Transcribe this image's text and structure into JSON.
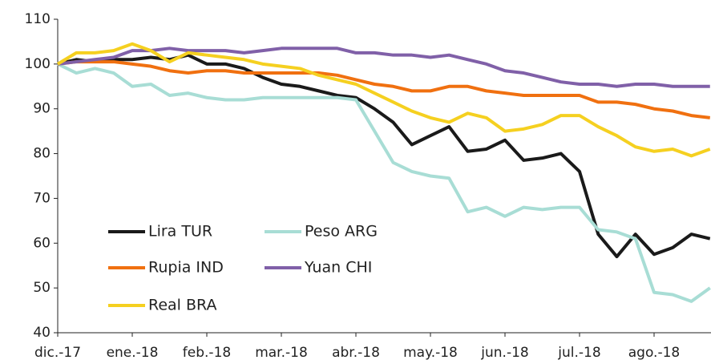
{
  "chart_data": {
    "type": "line",
    "categories": [
      "dic.-17",
      null,
      null,
      null,
      "ene.-18",
      null,
      null,
      null,
      "feb.-18",
      null,
      null,
      null,
      "mar.-18",
      null,
      null,
      null,
      "abr.-18",
      null,
      null,
      null,
      "may.-18",
      null,
      null,
      null,
      "jun.-18",
      null,
      null,
      null,
      "jul.-18",
      null,
      null,
      null,
      "ago.-18",
      null,
      null,
      null
    ],
    "series": [
      {
        "name": "Lira TUR",
        "color": "#1a1a1a",
        "values": [
          100,
          101,
          100.5,
          101,
          101,
          101.5,
          101,
          102,
          100,
          100,
          99,
          97,
          95.5,
          95,
          94,
          93,
          92.5,
          90,
          87,
          82,
          84,
          86,
          80.5,
          81,
          83,
          78.5,
          79,
          80,
          76,
          62,
          57,
          62,
          57.5,
          59,
          62,
          61
        ]
      },
      {
        "name": "Peso ARG",
        "color": "#a8ddd5",
        "values": [
          100,
          98,
          99,
          98,
          95,
          95.5,
          93,
          93.5,
          92.5,
          92,
          92,
          92.5,
          92.5,
          92.5,
          92.5,
          92.5,
          92,
          85,
          78,
          76,
          75,
          74.5,
          67,
          68,
          66,
          68,
          67.5,
          68,
          68,
          63,
          62.5,
          61,
          49,
          48.5,
          47,
          50
        ]
      },
      {
        "name": "Rupia IND",
        "color": "#f07010",
        "values": [
          100,
          100.5,
          100.5,
          100.5,
          100,
          99.5,
          98.5,
          98,
          98.5,
          98.5,
          98,
          98,
          98,
          98,
          98,
          97.5,
          96.5,
          95.5,
          95,
          94,
          94,
          95,
          95,
          94,
          93.5,
          93,
          93,
          93,
          93,
          91.5,
          91.5,
          91,
          90,
          89.5,
          88.5,
          88
        ]
      },
      {
        "name": "Yuan CHI",
        "color": "#8060a8",
        "values": [
          100,
          100.5,
          101,
          101.5,
          103,
          103,
          103.5,
          103,
          103,
          103,
          102.5,
          103,
          103.5,
          103.5,
          103.5,
          103.5,
          102.5,
          102.5,
          102,
          102,
          101.5,
          102,
          101,
          100,
          98.5,
          98,
          97,
          96,
          95.5,
          95.5,
          95,
          95.5,
          95.5,
          95,
          95,
          95
        ]
      },
      {
        "name": "Real BRA",
        "color": "#f5d020",
        "values": [
          100,
          102.5,
          102.5,
          103,
          104.5,
          103,
          100.5,
          102.5,
          102,
          101.5,
          101,
          100,
          99.5,
          99,
          97.5,
          96.5,
          95.5,
          93.5,
          91.5,
          89.5,
          88,
          87,
          89,
          88,
          85,
          85.5,
          86.5,
          88.5,
          88.5,
          86,
          84,
          81.5,
          80.5,
          81,
          79.5,
          81
        ]
      }
    ],
    "ylim": [
      40,
      110
    ],
    "yticks": [
      40,
      50,
      60,
      70,
      80,
      90,
      100,
      110
    ]
  }
}
